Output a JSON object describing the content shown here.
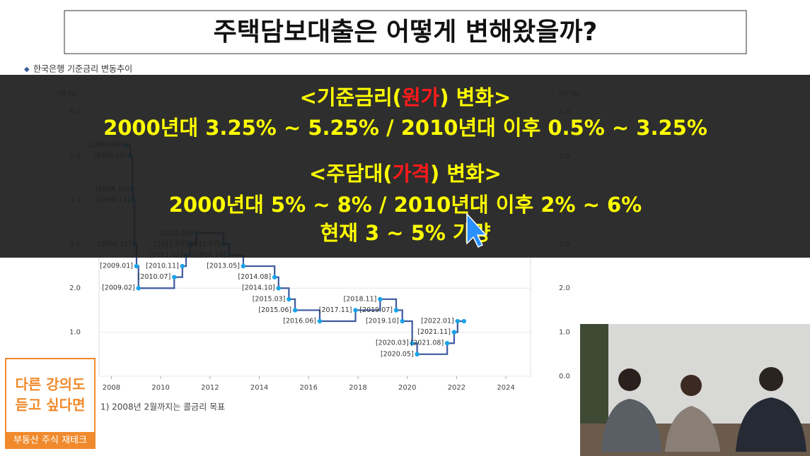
{
  "title": "주택담보대출은 어떻게 변해왔을까?",
  "chart": {
    "type": "step-line",
    "caption": "한국은행 기준금리 변동추이",
    "unit": "(연 %)",
    "color": "#3d5a9e",
    "point_color": "#1aa3e8",
    "xlim": [
      2007.5,
      2025
    ],
    "xticks": [
      2008,
      2010,
      2012,
      2014,
      2016,
      2018,
      2020,
      2022,
      2024
    ],
    "ylim": [
      0,
      6.3
    ],
    "yticks": [
      {
        "value": 6,
        "label": "6.0"
      },
      {
        "value": 5,
        "label": "5.0"
      },
      {
        "value": 4,
        "label": "4.0"
      },
      {
        "value": 3,
        "label": "3.0"
      },
      {
        "value": 2,
        "label": "2.0"
      },
      {
        "value": 1,
        "label": "1.0"
      },
      {
        "value": 0,
        "label": "0.0"
      }
    ],
    "points": {
      "labels": [
        "[2008.08]",
        "[2008.10]",
        "[2008.10]",
        "[2008.11]",
        "[2008.12]",
        "[2009.01]",
        "[2009.02]",
        "[2010.07]",
        "[2010.11]",
        "[2011.01]",
        "[2011.03]",
        "[2011.06]",
        "[2012.07]",
        "[2012.10]",
        "[2013.05]",
        "[2014.08]",
        "[2014.10]",
        "[2015.03]",
        "[2015.06]",
        "[2016.06]",
        "[2017.11]",
        "[2018.11]",
        "[2019.07]",
        "[2019.10]",
        "[2020.03]",
        "[2020.05]",
        "[2021.08]",
        "[2021.11]",
        "[2022.01]",
        null
      ],
      "x": [
        2008.58,
        2008.77,
        2008.85,
        2008.88,
        2008.94,
        2009.02,
        2009.1,
        2010.55,
        2010.88,
        2011.03,
        2011.2,
        2011.45,
        2012.55,
        2012.78,
        2013.35,
        2014.62,
        2014.78,
        2015.2,
        2015.45,
        2016.45,
        2017.9,
        2018.9,
        2019.55,
        2019.8,
        2020.2,
        2020.4,
        2021.62,
        2021.9,
        2022.04,
        2022.3
      ],
      "values": [
        5.25,
        5.0,
        4.25,
        4.0,
        3.0,
        2.5,
        2.0,
        2.25,
        2.5,
        2.75,
        3.0,
        3.25,
        3.0,
        2.75,
        2.5,
        2.25,
        2.0,
        1.75,
        1.5,
        1.25,
        1.5,
        1.75,
        1.5,
        1.25,
        0.75,
        0.5,
        0.75,
        1.0,
        1.25,
        1.25
      ]
    },
    "footnote": "1) 2008년 2월까지는 콜금리 목표"
  },
  "overlay": {
    "lines": [
      [
        {
          "text": "<기준금리("
        },
        {
          "text": "원가",
          "color": "#ff1a1a"
        },
        {
          "text": ") 변화>"
        }
      ],
      [
        {
          "text": "2000년대 3.25% ~ 5.25% / 2010년대 이후 0.5% ~ 3.25%"
        }
      ],
      [
        {
          "text": "<주담대("
        },
        {
          "text": "가격",
          "color": "#ff1a1a"
        },
        {
          "text": ") 변화>"
        }
      ],
      [
        {
          "text": "2000년대 5% ~ 8% / 2010년대 이후 2% ~ 6%"
        }
      ],
      [
        {
          "text": "현재 3 ~ 5% 가량"
        }
      ]
    ]
  },
  "promo": {
    "heading": [
      "다른 강의도",
      "듣고 싶다면"
    ],
    "footer": "부동산 주식 재테크"
  }
}
